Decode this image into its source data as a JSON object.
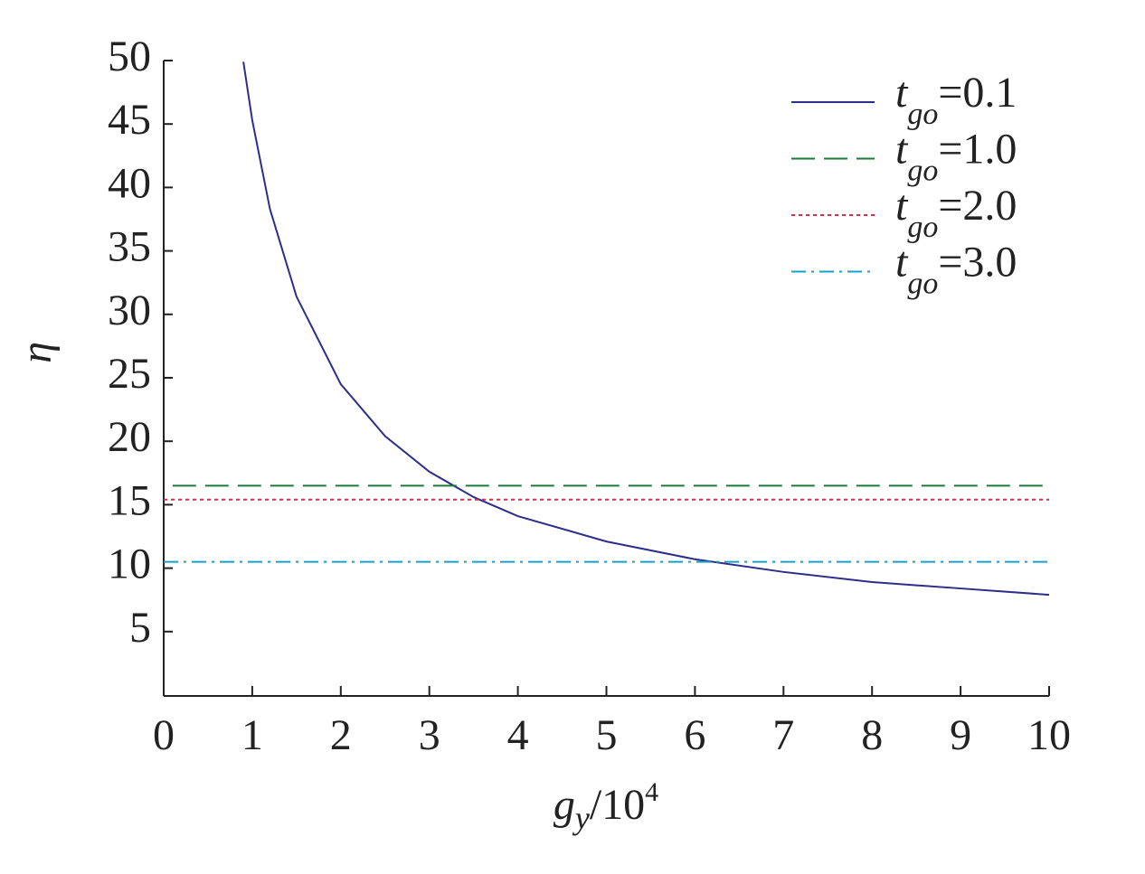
{
  "chart_data": {
    "type": "line",
    "x_label": "gy/104",
    "y_label": "η",
    "xlim": [
      0,
      10
    ],
    "xticks": [
      0,
      1,
      2,
      3,
      4,
      5,
      6,
      7,
      8,
      9,
      10
    ],
    "ylim": [
      0,
      50
    ],
    "yticks": [
      5,
      10,
      15,
      20,
      25,
      30,
      35,
      40,
      45,
      50
    ],
    "legend": "upper right",
    "series": [
      {
        "name": "tgo=0.1",
        "color": "#2e2e8a",
        "dash": "solid",
        "x": [
          0.9,
          1,
          1.2,
          1.5,
          2,
          2.5,
          3,
          3.5,
          4,
          5,
          6,
          7,
          8,
          9,
          10
        ],
        "values": [
          49.9,
          45.3,
          38.3,
          31.4,
          24.5,
          20.4,
          17.6,
          15.6,
          14.1,
          12.1,
          10.7,
          9.7,
          8.9,
          8.4,
          7.9
        ]
      },
      {
        "name": "tgo=1.0",
        "color": "#1a7a3a",
        "dash": "dashed",
        "x": [
          0.1,
          10
        ],
        "values": [
          16.5,
          16.5
        ]
      },
      {
        "name": "tgo=2.0",
        "color": "#d0324a",
        "dash": "dotted",
        "x": [
          0,
          10
        ],
        "values": [
          15.4,
          15.4
        ]
      },
      {
        "name": "tgo=3.0",
        "color": "#1aa0c8",
        "dash": "dashdot",
        "x": [
          0,
          10
        ],
        "values": [
          10.5,
          10.5
        ]
      }
    ]
  }
}
